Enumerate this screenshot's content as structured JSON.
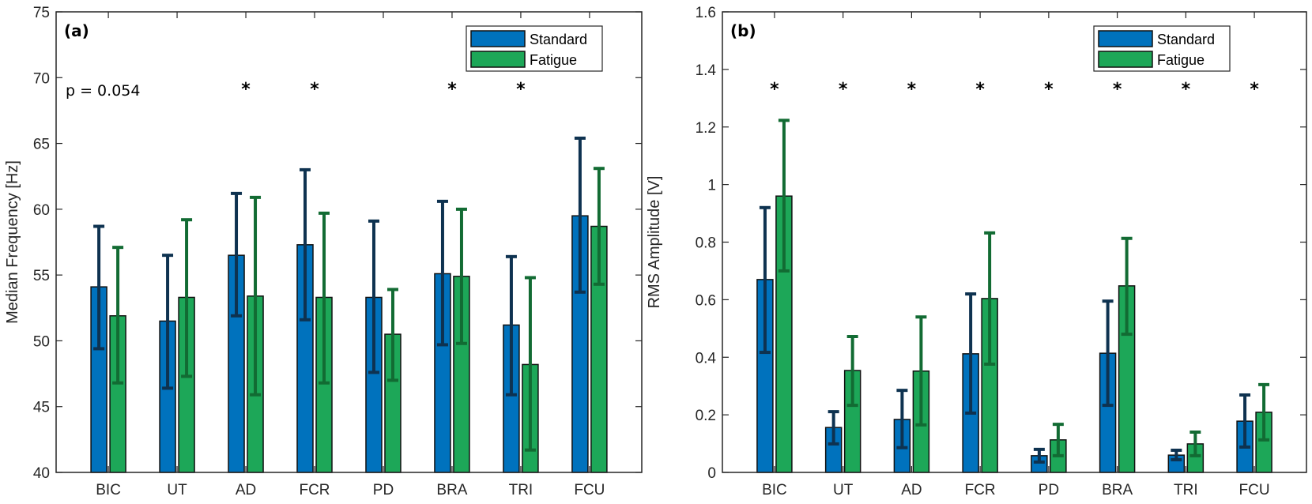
{
  "colors": {
    "standard_fill": "#0072BD",
    "fatigue_fill": "#1DA758",
    "standard_err": "#0E3250",
    "fatigue_err": "#126B33",
    "axis": "#262626"
  },
  "chart_data": [
    {
      "type": "bar",
      "panel_label": "(a)",
      "title": "",
      "xlabel": "",
      "ylabel": "Median Frequency [Hz]",
      "ylim": [
        40,
        75
      ],
      "yticks": [
        40,
        45,
        50,
        55,
        60,
        65,
        70,
        75
      ],
      "ytick_labels": [
        "40",
        "45",
        "50",
        "55",
        "60",
        "65",
        "70",
        "75"
      ],
      "categories": [
        "BIC",
        "UT",
        "AD",
        "FCR",
        "PD",
        "BRA",
        "TRI",
        "FCU"
      ],
      "legend": {
        "placement": "top-right",
        "entries": [
          "Standard",
          "Fatigue"
        ]
      },
      "annotation": "p = 0.054",
      "significance_marker": "*",
      "significant": [
        false,
        false,
        true,
        true,
        false,
        true,
        true,
        false
      ],
      "series": [
        {
          "name": "Standard",
          "values": [
            54.1,
            51.5,
            56.5,
            57.3,
            53.3,
            55.1,
            51.2,
            59.5
          ],
          "err_low": [
            49.4,
            46.4,
            51.9,
            51.6,
            47.6,
            49.7,
            45.9,
            53.7
          ],
          "err_high": [
            58.7,
            56.5,
            61.2,
            63.0,
            59.1,
            60.6,
            56.4,
            65.4
          ]
        },
        {
          "name": "Fatigue",
          "values": [
            51.9,
            53.3,
            53.4,
            53.3,
            50.5,
            54.9,
            48.2,
            58.7
          ],
          "err_low": [
            46.8,
            47.3,
            45.9,
            46.8,
            47.0,
            49.8,
            41.7,
            54.3
          ],
          "err_high": [
            57.1,
            59.2,
            60.9,
            59.7,
            53.9,
            60.0,
            54.8,
            63.1
          ]
        }
      ]
    },
    {
      "type": "bar",
      "panel_label": "(b)",
      "title": "",
      "xlabel": "",
      "ylabel": "RMS Amplitude [V]",
      "ylim": [
        0,
        1.6
      ],
      "yticks": [
        0,
        0.2,
        0.4,
        0.6,
        0.8,
        1.0,
        1.2,
        1.4,
        1.6
      ],
      "ytick_labels": [
        "0",
        "0.2",
        "0.4",
        "0.6",
        "0.8",
        "1",
        "1.2",
        "1.4",
        "1.6"
      ],
      "categories": [
        "BIC",
        "UT",
        "AD",
        "FCR",
        "PD",
        "BRA",
        "TRI",
        "FCU"
      ],
      "legend": {
        "placement": "top-right",
        "entries": [
          "Standard",
          "Fatigue"
        ]
      },
      "annotation": "",
      "significance_marker": "*",
      "significant": [
        true,
        true,
        true,
        true,
        true,
        true,
        true,
        true
      ],
      "series": [
        {
          "name": "Standard",
          "values": [
            0.67,
            0.156,
            0.184,
            0.412,
            0.058,
            0.414,
            0.06,
            0.178
          ],
          "err_low": [
            0.417,
            0.099,
            0.086,
            0.206,
            0.036,
            0.233,
            0.044,
            0.088
          ],
          "err_high": [
            0.92,
            0.211,
            0.285,
            0.62,
            0.08,
            0.595,
            0.077,
            0.269
          ]
        },
        {
          "name": "Fatigue",
          "values": [
            0.96,
            0.354,
            0.352,
            0.604,
            0.113,
            0.648,
            0.099,
            0.209
          ],
          "err_low": [
            0.7,
            0.233,
            0.165,
            0.376,
            0.058,
            0.48,
            0.058,
            0.113
          ],
          "err_high": [
            1.223,
            0.472,
            0.54,
            0.832,
            0.167,
            0.813,
            0.14,
            0.305
          ]
        }
      ]
    }
  ]
}
